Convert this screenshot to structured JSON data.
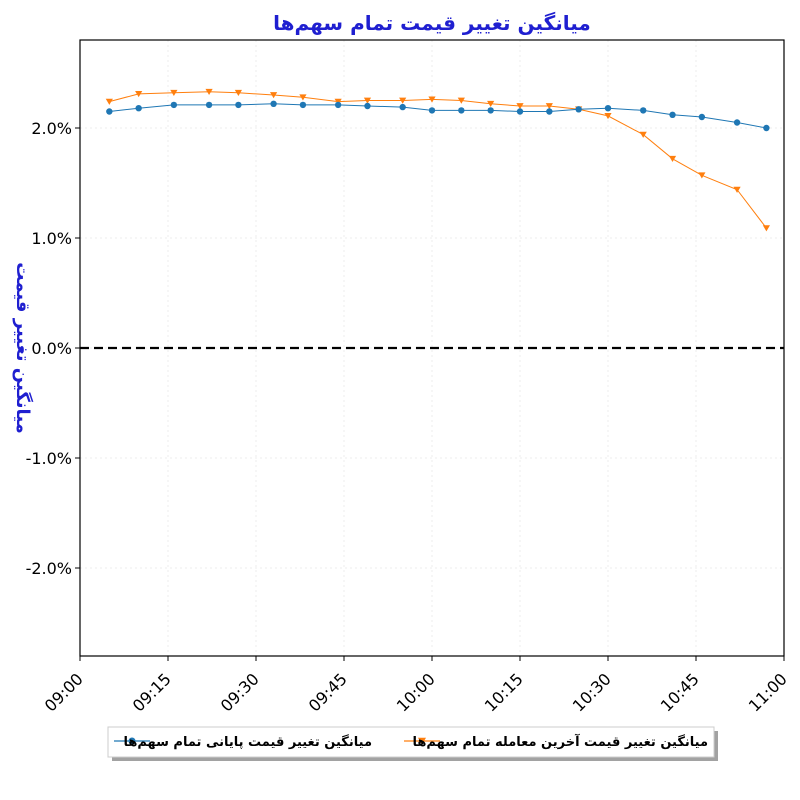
{
  "chart_data": {
    "type": "line",
    "title": "میانگین تغییر قیمت تمام سهم‌ها",
    "xlabel": "",
    "ylabel": "میانگین تغییر قیمت",
    "x_ticks": [
      "09:00",
      "09:15",
      "09:30",
      "09:45",
      "10:00",
      "10:15",
      "10:30",
      "10:45",
      "11:00"
    ],
    "y_ticks": [
      "-2.0%",
      "-1.0%",
      "0.0%",
      "1.0%",
      "2.0%"
    ],
    "y_tick_values": [
      -2.0,
      -1.0,
      0.0,
      1.0,
      2.0
    ],
    "xlim": [
      "09:00",
      "11:00"
    ],
    "ylim": [
      -2.8,
      2.8
    ],
    "grid": true,
    "reference_line": {
      "y": 0.0,
      "style": "dashed",
      "color": "#000000"
    },
    "legend_position": "bottom-center",
    "x": [
      "09:05",
      "09:10",
      "09:16",
      "09:22",
      "09:27",
      "09:33",
      "09:38",
      "09:44",
      "09:49",
      "09:55",
      "10:00",
      "10:05",
      "10:10",
      "10:15",
      "10:20",
      "10:25",
      "10:30",
      "10:36",
      "10:41",
      "10:46",
      "10:52",
      "10:57"
    ],
    "series": [
      {
        "name": "میانگین تغییر قیمت پایانی تمام سهم‌ها",
        "color": "#1f77b4",
        "marker": "circle",
        "values": [
          2.15,
          2.18,
          2.21,
          2.21,
          2.21,
          2.22,
          2.21,
          2.21,
          2.2,
          2.19,
          2.16,
          2.16,
          2.16,
          2.15,
          2.15,
          2.17,
          2.18,
          2.16,
          2.12,
          2.1,
          2.05,
          2.0
        ]
      },
      {
        "name": "میانگین تغییر قیمت آخرین معامله تمام سهم‌ها",
        "color": "#ff7f0e",
        "marker": "triangle-down",
        "values": [
          2.24,
          2.31,
          2.32,
          2.33,
          2.32,
          2.3,
          2.28,
          2.24,
          2.25,
          2.25,
          2.26,
          2.25,
          2.22,
          2.2,
          2.2,
          2.17,
          2.11,
          1.94,
          1.72,
          1.57,
          1.44,
          1.09
        ]
      }
    ]
  }
}
